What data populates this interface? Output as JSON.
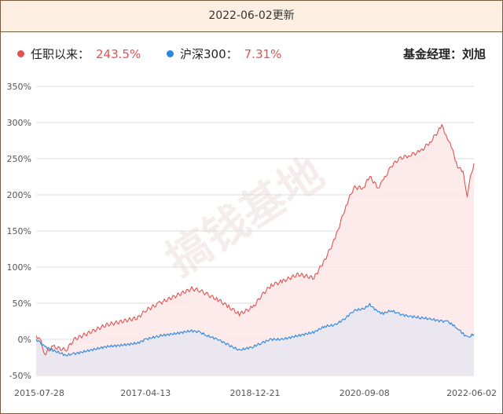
{
  "header": {
    "title": "2022-06-02更新"
  },
  "legend": [
    {
      "label": "任职以来：",
      "value": "243.5%",
      "color": "#e05252"
    },
    {
      "label": "沪深300：",
      "value": "7.31%",
      "color": "#2a86e0"
    }
  ],
  "manager": "基金经理：刘旭",
  "watermark": "搞钱基地",
  "colors": {
    "fund_line": "#e05252",
    "fund_fill": "#fde8e8",
    "index_line": "#2a86e0",
    "index_fill": "#e6e6f2",
    "grid": "#dddddd"
  },
  "chart_data": {
    "type": "line",
    "title": "",
    "xlabel": "",
    "ylabel": "",
    "ylim": [
      -50,
      350
    ],
    "yticks": [
      350,
      300,
      250,
      200,
      150,
      100,
      50,
      0,
      -50
    ],
    "ytick_labels": [
      "350%",
      "300%",
      "250%",
      "200%",
      "150%",
      "100%",
      "50%",
      "0%",
      "-50%"
    ],
    "xtick_labels": [
      "2015-07-28",
      "2017-04-13",
      "2018-12-21",
      "2020-09-08",
      "2022-06-02"
    ],
    "grid": true,
    "x": [
      "2015-07-28",
      "2015-08-20",
      "2015-09-15",
      "2015-11-01",
      "2016-01-15",
      "2016-03-01",
      "2016-06-01",
      "2016-09-01",
      "2016-12-01",
      "2017-03-01",
      "2017-04-13",
      "2017-07-01",
      "2017-10-01",
      "2018-01-01",
      "2018-02-15",
      "2018-04-01",
      "2018-06-01",
      "2018-08-01",
      "2018-10-01",
      "2018-12-21",
      "2019-02-01",
      "2019-04-01",
      "2019-06-01",
      "2019-09-01",
      "2019-12-01",
      "2020-02-01",
      "2020-04-01",
      "2020-06-01",
      "2020-07-15",
      "2020-09-08",
      "2020-10-15",
      "2020-12-01",
      "2021-01-01",
      "2021-02-15",
      "2021-04-01",
      "2021-06-01",
      "2021-08-01",
      "2021-10-01",
      "2021-12-01",
      "2022-01-01",
      "2022-02-01",
      "2022-03-01",
      "2022-04-01",
      "2022-04-25",
      "2022-05-15",
      "2022-06-02"
    ],
    "series": [
      {
        "name": "任职以来",
        "values": [
          5,
          0,
          -20,
          -10,
          -15,
          0,
          10,
          20,
          25,
          30,
          40,
          50,
          60,
          70,
          68,
          62,
          55,
          45,
          35,
          45,
          60,
          75,
          80,
          90,
          85,
          110,
          140,
          185,
          210,
          210,
          225,
          210,
          220,
          240,
          250,
          255,
          260,
          275,
          295,
          280,
          260,
          240,
          230,
          200,
          225,
          243.5
        ]
      },
      {
        "name": "沪深300",
        "values": [
          0,
          -5,
          -10,
          -15,
          -22,
          -20,
          -15,
          -10,
          -8,
          -5,
          0,
          5,
          8,
          12,
          10,
          5,
          0,
          -8,
          -15,
          -10,
          -5,
          0,
          0,
          5,
          10,
          18,
          20,
          30,
          40,
          42,
          48,
          38,
          36,
          40,
          35,
          32,
          30,
          28,
          25,
          25,
          20,
          15,
          8,
          3,
          5,
          7.31
        ]
      }
    ]
  }
}
